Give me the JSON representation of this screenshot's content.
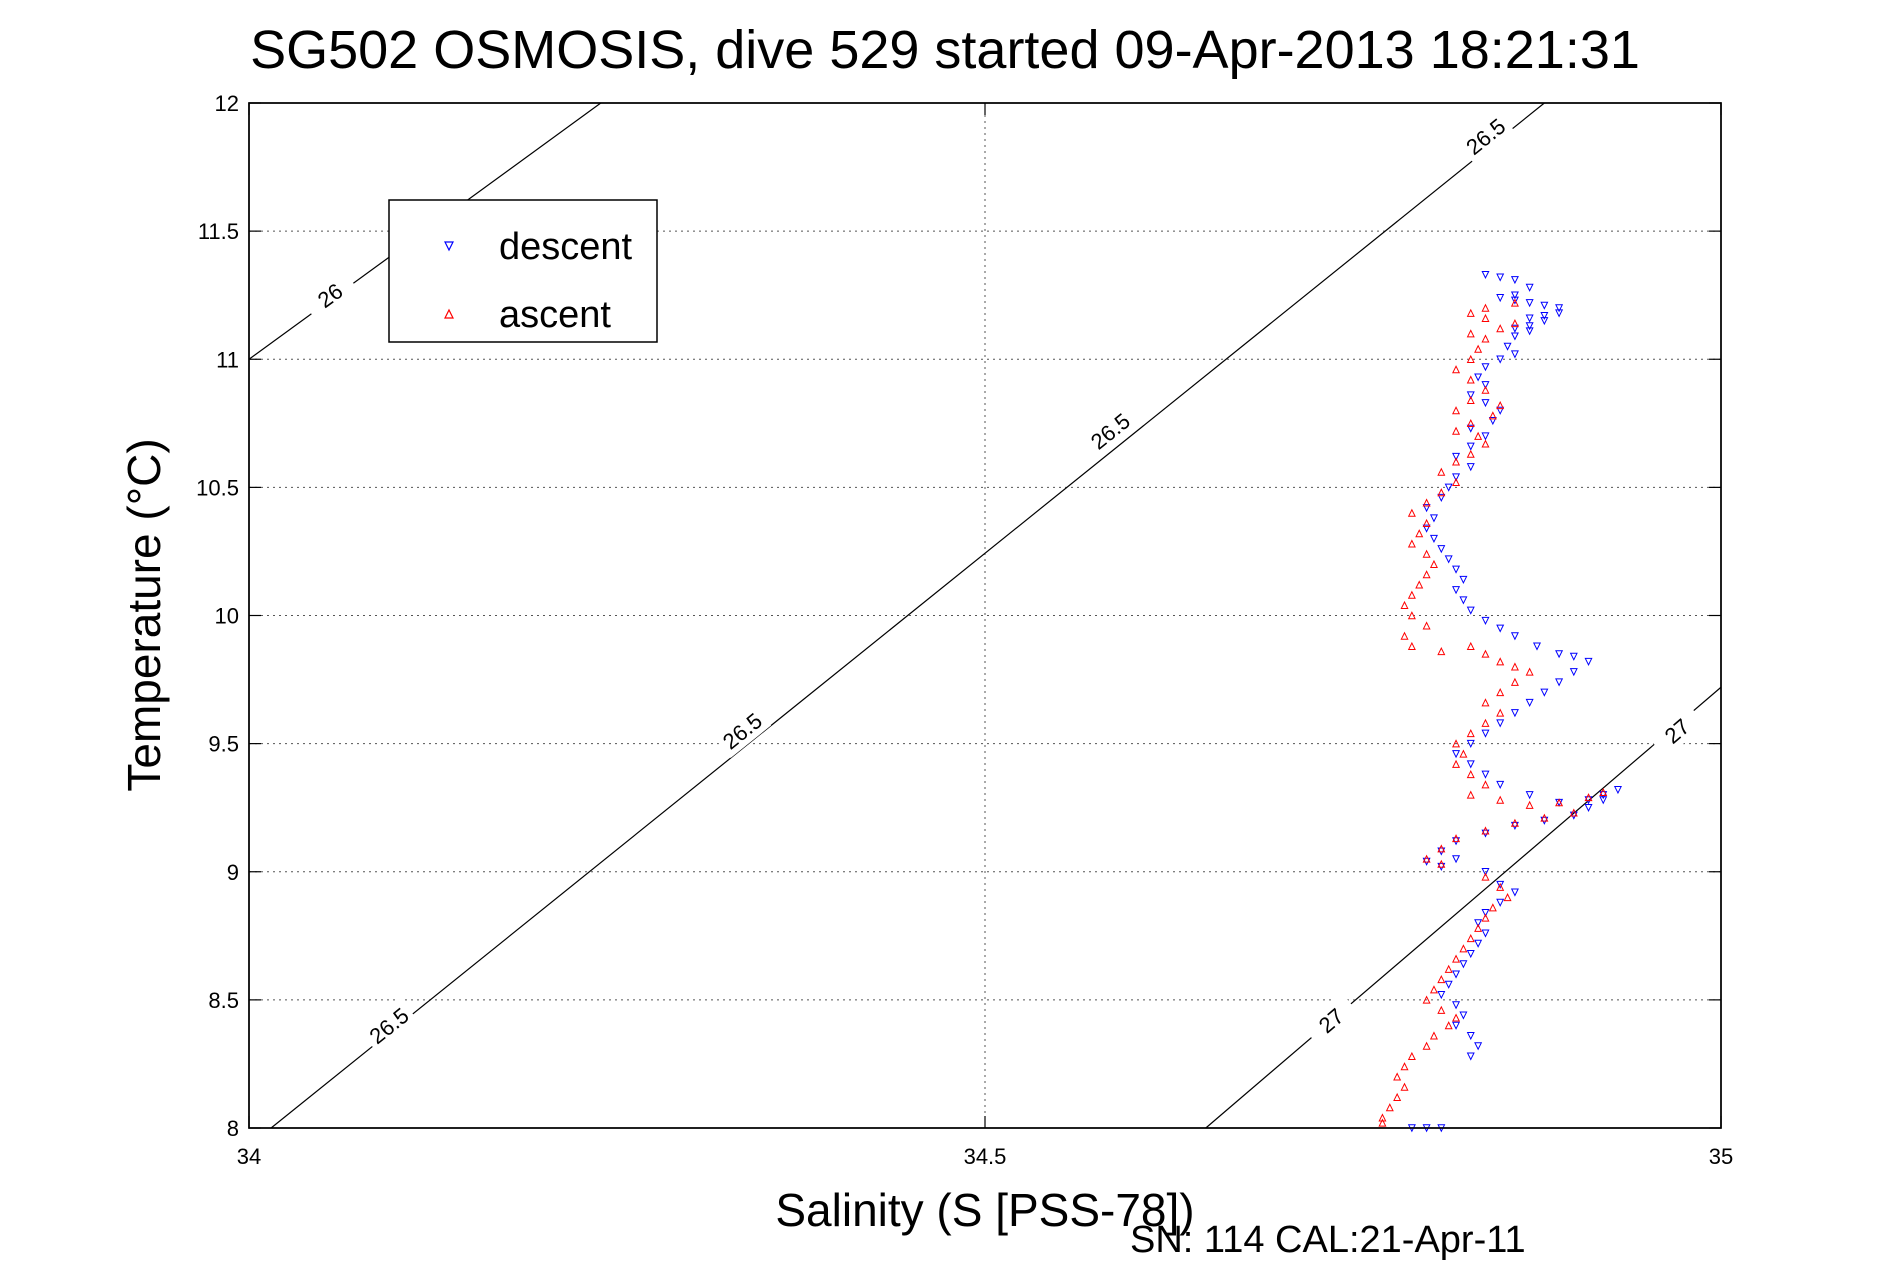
{
  "chart_data": {
    "type": "scatter",
    "title": "SG502 OSMOSIS, dive 529 started 09-Apr-2013 18:21:31",
    "xlabel": "Salinity (S [PSS-78])",
    "ylabel": "Temperature (°C)",
    "xlim": [
      34,
      35
    ],
    "ylim": [
      8,
      12
    ],
    "xticks": [
      34,
      34.5,
      35
    ],
    "xtick_labels": [
      "34",
      "34.5",
      "35"
    ],
    "yticks": [
      8,
      8.5,
      9,
      9.5,
      10,
      10.5,
      11,
      11.5,
      12
    ],
    "ytick_labels": [
      "8",
      "8.5",
      "9",
      "9.5",
      "10",
      "10.5",
      "11",
      "11.5",
      "12"
    ],
    "grid": true,
    "legend_position": "top-left",
    "footnote": "SN: 114  CAL:21-Apr-11",
    "contours": [
      {
        "label": "26",
        "points": [
          [
            34.0,
            11.0
          ],
          [
            34.239,
            12.0
          ]
        ],
        "label_at": [
          [
            34.055,
            11.25
          ]
        ]
      },
      {
        "label": "26.5",
        "points": [
          [
            34.015,
            8.0
          ],
          [
            34.88,
            12.0
          ]
        ],
        "label_at": [
          [
            34.095,
            8.4
          ],
          [
            34.335,
            9.55
          ],
          [
            34.585,
            10.72
          ],
          [
            34.84,
            11.87
          ]
        ]
      },
      {
        "label": "27",
        "points": [
          [
            34.65,
            8.0
          ],
          [
            35.0,
            9.72
          ]
        ],
        "label_at": [
          [
            34.735,
            8.42
          ],
          [
            34.97,
            9.55
          ]
        ]
      }
    ],
    "series": [
      {
        "name": "descent",
        "color": "#0000ff",
        "marker": "triangle-down",
        "points": [
          [
            34.84,
            11.33
          ],
          [
            34.85,
            11.32
          ],
          [
            34.86,
            11.31
          ],
          [
            34.87,
            11.28
          ],
          [
            34.86,
            11.25
          ],
          [
            34.85,
            11.24
          ],
          [
            34.86,
            11.23
          ],
          [
            34.87,
            11.22
          ],
          [
            34.88,
            11.21
          ],
          [
            34.89,
            11.2
          ],
          [
            34.89,
            11.18
          ],
          [
            34.88,
            11.17
          ],
          [
            34.87,
            11.16
          ],
          [
            34.88,
            11.15
          ],
          [
            34.87,
            11.13
          ],
          [
            34.86,
            11.12
          ],
          [
            34.87,
            11.11
          ],
          [
            34.86,
            11.09
          ],
          [
            34.855,
            11.05
          ],
          [
            34.86,
            11.02
          ],
          [
            34.85,
            11.0
          ],
          [
            34.84,
            10.97
          ],
          [
            34.835,
            10.93
          ],
          [
            34.84,
            10.9
          ],
          [
            34.83,
            10.86
          ],
          [
            34.84,
            10.83
          ],
          [
            34.85,
            10.8
          ],
          [
            34.845,
            10.76
          ],
          [
            34.83,
            10.73
          ],
          [
            34.84,
            10.7
          ],
          [
            34.83,
            10.66
          ],
          [
            34.82,
            10.62
          ],
          [
            34.83,
            10.58
          ],
          [
            34.82,
            10.54
          ],
          [
            34.815,
            10.5
          ],
          [
            34.81,
            10.46
          ],
          [
            34.8,
            10.42
          ],
          [
            34.805,
            10.38
          ],
          [
            34.8,
            10.34
          ],
          [
            34.805,
            10.3
          ],
          [
            34.81,
            10.26
          ],
          [
            34.815,
            10.22
          ],
          [
            34.82,
            10.18
          ],
          [
            34.825,
            10.14
          ],
          [
            34.82,
            10.1
          ],
          [
            34.825,
            10.06
          ],
          [
            34.83,
            10.02
          ],
          [
            34.84,
            9.98
          ],
          [
            34.85,
            9.95
          ],
          [
            34.86,
            9.92
          ],
          [
            34.875,
            9.88
          ],
          [
            34.89,
            9.85
          ],
          [
            34.9,
            9.84
          ],
          [
            34.91,
            9.82
          ],
          [
            34.9,
            9.78
          ],
          [
            34.89,
            9.74
          ],
          [
            34.88,
            9.7
          ],
          [
            34.87,
            9.66
          ],
          [
            34.86,
            9.62
          ],
          [
            34.85,
            9.58
          ],
          [
            34.84,
            9.54
          ],
          [
            34.83,
            9.5
          ],
          [
            34.82,
            9.46
          ],
          [
            34.83,
            9.42
          ],
          [
            34.84,
            9.38
          ],
          [
            34.85,
            9.34
          ],
          [
            34.87,
            9.3
          ],
          [
            34.89,
            9.27
          ],
          [
            34.91,
            9.28
          ],
          [
            34.92,
            9.3
          ],
          [
            34.93,
            9.32
          ],
          [
            34.92,
            9.28
          ],
          [
            34.91,
            9.25
          ],
          [
            34.9,
            9.22
          ],
          [
            34.88,
            9.2
          ],
          [
            34.86,
            9.18
          ],
          [
            34.84,
            9.15
          ],
          [
            34.82,
            9.12
          ],
          [
            34.81,
            9.08
          ],
          [
            34.8,
            9.04
          ],
          [
            34.81,
            9.02
          ],
          [
            34.82,
            9.05
          ],
          [
            34.84,
            9.0
          ],
          [
            34.85,
            8.95
          ],
          [
            34.86,
            8.92
          ],
          [
            34.85,
            8.88
          ],
          [
            34.84,
            8.84
          ],
          [
            34.835,
            8.8
          ],
          [
            34.84,
            8.76
          ],
          [
            34.835,
            8.72
          ],
          [
            34.83,
            8.68
          ],
          [
            34.825,
            8.64
          ],
          [
            34.82,
            8.6
          ],
          [
            34.815,
            8.56
          ],
          [
            34.81,
            8.52
          ],
          [
            34.82,
            8.48
          ],
          [
            34.825,
            8.44
          ],
          [
            34.82,
            8.4
          ],
          [
            34.83,
            8.36
          ],
          [
            34.835,
            8.32
          ],
          [
            34.83,
            8.28
          ],
          [
            34.81,
            8.0
          ],
          [
            34.8,
            8.0
          ],
          [
            34.79,
            8.0
          ]
        ]
      },
      {
        "name": "ascent",
        "color": "#ff0000",
        "marker": "triangle-up",
        "points": [
          [
            34.86,
            11.22
          ],
          [
            34.84,
            11.2
          ],
          [
            34.83,
            11.18
          ],
          [
            34.84,
            11.16
          ],
          [
            34.86,
            11.14
          ],
          [
            34.85,
            11.12
          ],
          [
            34.83,
            11.1
          ],
          [
            34.84,
            11.08
          ],
          [
            34.835,
            11.04
          ],
          [
            34.83,
            11.0
          ],
          [
            34.82,
            10.96
          ],
          [
            34.83,
            10.92
          ],
          [
            34.84,
            10.88
          ],
          [
            34.83,
            10.84
          ],
          [
            34.82,
            10.8
          ],
          [
            34.85,
            10.82
          ],
          [
            34.845,
            10.78
          ],
          [
            34.83,
            10.75
          ],
          [
            34.82,
            10.72
          ],
          [
            34.835,
            10.7
          ],
          [
            34.84,
            10.67
          ],
          [
            34.83,
            10.63
          ],
          [
            34.82,
            10.6
          ],
          [
            34.81,
            10.56
          ],
          [
            34.82,
            10.52
          ],
          [
            34.81,
            10.48
          ],
          [
            34.8,
            10.44
          ],
          [
            34.79,
            10.4
          ],
          [
            34.8,
            10.36
          ],
          [
            34.795,
            10.32
          ],
          [
            34.79,
            10.28
          ],
          [
            34.8,
            10.24
          ],
          [
            34.805,
            10.2
          ],
          [
            34.8,
            10.16
          ],
          [
            34.795,
            10.12
          ],
          [
            34.79,
            10.08
          ],
          [
            34.785,
            10.04
          ],
          [
            34.79,
            10.0
          ],
          [
            34.8,
            9.96
          ],
          [
            34.785,
            9.92
          ],
          [
            34.79,
            9.88
          ],
          [
            34.81,
            9.86
          ],
          [
            34.83,
            9.88
          ],
          [
            34.84,
            9.85
          ],
          [
            34.85,
            9.82
          ],
          [
            34.86,
            9.8
          ],
          [
            34.87,
            9.78
          ],
          [
            34.86,
            9.74
          ],
          [
            34.85,
            9.7
          ],
          [
            34.84,
            9.66
          ],
          [
            34.85,
            9.62
          ],
          [
            34.84,
            9.58
          ],
          [
            34.83,
            9.54
          ],
          [
            34.82,
            9.5
          ],
          [
            34.825,
            9.46
          ],
          [
            34.82,
            9.42
          ],
          [
            34.83,
            9.38
          ],
          [
            34.84,
            9.34
          ],
          [
            34.83,
            9.3
          ],
          [
            34.85,
            9.28
          ],
          [
            34.87,
            9.26
          ],
          [
            34.89,
            9.27
          ],
          [
            34.91,
            9.29
          ],
          [
            34.92,
            9.31
          ],
          [
            34.9,
            9.23
          ],
          [
            34.88,
            9.21
          ],
          [
            34.86,
            9.19
          ],
          [
            34.84,
            9.16
          ],
          [
            34.82,
            9.13
          ],
          [
            34.81,
            9.09
          ],
          [
            34.8,
            9.05
          ],
          [
            34.81,
            9.03
          ],
          [
            34.84,
            8.98
          ],
          [
            34.85,
            8.94
          ],
          [
            34.855,
            8.9
          ],
          [
            34.845,
            8.86
          ],
          [
            34.84,
            8.82
          ],
          [
            34.835,
            8.78
          ],
          [
            34.83,
            8.74
          ],
          [
            34.825,
            8.7
          ],
          [
            34.82,
            8.66
          ],
          [
            34.815,
            8.62
          ],
          [
            34.81,
            8.58
          ],
          [
            34.805,
            8.54
          ],
          [
            34.8,
            8.5
          ],
          [
            34.81,
            8.46
          ],
          [
            34.82,
            8.43
          ],
          [
            34.815,
            8.4
          ],
          [
            34.805,
            8.36
          ],
          [
            34.8,
            8.32
          ],
          [
            34.79,
            8.28
          ],
          [
            34.785,
            8.24
          ],
          [
            34.78,
            8.2
          ],
          [
            34.785,
            8.16
          ],
          [
            34.78,
            8.12
          ],
          [
            34.775,
            8.08
          ],
          [
            34.77,
            8.04
          ],
          [
            34.77,
            8.02
          ]
        ]
      }
    ]
  }
}
